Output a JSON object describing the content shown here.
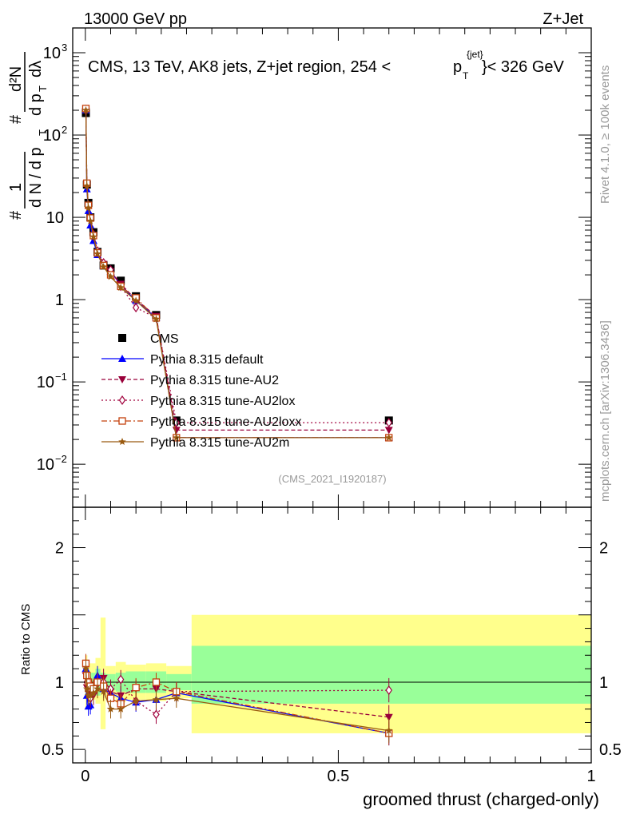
{
  "header": {
    "left": "13000 GeV pp",
    "right": "Z+Jet"
  },
  "title": {
    "main": "CMS, 13 TeV, AK8 jets, Z+jet region, 254 <",
    "p": "p",
    "sub": "T",
    "sup": "{jet}",
    "tail": "}< 326 GeV"
  },
  "side_labels": {
    "rivet": "Rivet 4.1.0, ≥ 100k events",
    "mcplots": "mcplots.cern.ch [arXiv:1306.3436]"
  },
  "analysis_id": "(CMS_2021_I1920187)",
  "ylabel_main": {
    "hash": "#",
    "one": "1",
    "den": "d N / d p",
    "den_sub": "T",
    "num": "d²N",
    "num_den": "d p",
    "num_den_sub": "T",
    "dl": "dλ"
  },
  "ylabel_ratio": "Ratio to CMS",
  "xlabel": "groomed thrust (charged-only)",
  "colors": {
    "cms": "#000000",
    "default": "#0000ff",
    "au2": "#99003a",
    "au2lox": "#a0003c",
    "au2loxx": "#c4400c",
    "au2m": "#9a5a10",
    "band_yellow": "#ffff8c",
    "band_green": "#99ff99"
  },
  "chart_data": [
    {
      "type": "scatter",
      "panel": "main",
      "title": "CMS, 13 TeV, AK8 jets, Z+jet region, 254 <p_T^{jet}< 326 GeV",
      "xlabel": "groomed thrust (charged-only)",
      "ylabel": "1/dN/dpT · d²N/dpT dλ",
      "yscale": "log",
      "xlim": [
        -0.025,
        1.0
      ],
      "ylim": [
        0.003,
        2000
      ],
      "x_ticks": [
        0,
        0.5,
        1
      ],
      "x_tick_labels": [
        "0",
        "0.5",
        "1"
      ],
      "y_ticks": [
        0.01,
        0.1,
        1,
        10,
        100,
        1000
      ],
      "y_tick_labels": [
        "10^-2",
        "10^-1",
        "1",
        "10",
        "10^2",
        "10^3"
      ],
      "x": [
        0.001,
        0.003,
        0.006,
        0.01,
        0.016,
        0.024,
        0.036,
        0.05,
        0.07,
        0.1,
        0.14,
        0.18,
        0.6
      ],
      "series": [
        {
          "name": "CMS",
          "key": "cms",
          "marker": "square",
          "values": [
            185,
            25,
            15,
            10,
            6.6,
            3.8,
            2.6,
            2.4,
            1.7,
            1.1,
            0.65,
            0.034,
            0.034
          ]
        },
        {
          "name": "Pythia 8.315 default",
          "key": "default",
          "marker": "triangle-up",
          "values": [
            200,
            22,
            12,
            8,
            5.2,
            3.5,
            2.6,
            2.2,
            1.5,
            0.97,
            0.6,
            0.021,
            0.021
          ]
        },
        {
          "name": "Pythia 8.315 tune-AU2",
          "key": "au2",
          "marker": "triangle-down",
          "values": [
            195,
            24,
            13.5,
            9.2,
            5.8,
            3.7,
            2.7,
            2.2,
            1.55,
            1.0,
            0.63,
            0.026,
            0.026
          ]
        },
        {
          "name": "Pythia 8.315 tune-AU2lox",
          "key": "au2lox",
          "marker": "diamond-open",
          "values": [
            205,
            25,
            14,
            9.5,
            6.2,
            3.9,
            2.8,
            2.3,
            1.45,
            0.8,
            0.6,
            0.032,
            0.032
          ]
        },
        {
          "name": "Pythia 8.315 tune-AU2loxx",
          "key": "au2loxx",
          "marker": "square-open",
          "values": [
            210,
            26,
            14,
            9.8,
            6.0,
            3.7,
            2.6,
            2.0,
            1.45,
            1.05,
            0.6,
            0.021,
            0.021
          ]
        },
        {
          "name": "Pythia 8.315 tune-AU2m",
          "key": "au2m",
          "marker": "star",
          "values": [
            200,
            24,
            13,
            9.0,
            5.8,
            3.6,
            2.5,
            1.9,
            1.4,
            0.97,
            0.58,
            0.021,
            0.021
          ]
        }
      ],
      "legend": [
        "CMS",
        "Pythia 8.315 default",
        "Pythia 8.315 tune-AU2",
        "Pythia 8.315 tune-AU2lox",
        "Pythia 8.315 tune-AU2loxx",
        "Pythia 8.315 tune-AU2m"
      ],
      "legend_placement": "center-left"
    },
    {
      "type": "line",
      "panel": "ratio",
      "xlabel": "groomed thrust (charged-only)",
      "ylabel": "Ratio to CMS",
      "xlim": [
        -0.025,
        1.0
      ],
      "ylim": [
        0.4,
        2.3
      ],
      "y_ticks": [
        0.5,
        1,
        2
      ],
      "y_tick_labels": [
        "0.5",
        "1",
        "2"
      ],
      "x": [
        0.001,
        0.003,
        0.006,
        0.01,
        0.016,
        0.024,
        0.036,
        0.05,
        0.07,
        0.1,
        0.14,
        0.18,
        0.6
      ],
      "bands": [
        {
          "x_edges": [
            0.0,
            0.002,
            0.004,
            0.008,
            0.012,
            0.02,
            0.03,
            0.04,
            0.06,
            0.08,
            0.12,
            0.16,
            0.21,
            1.0
          ],
          "green": [
            [
              0.88,
              1.12
            ],
            [
              0.92,
              1.08
            ],
            [
              0.93,
              1.07
            ],
            [
              0.93,
              1.07
            ],
            [
              0.93,
              1.07
            ],
            [
              0.9,
              1.1
            ],
            [
              0.93,
              1.07
            ],
            [
              0.94,
              1.06
            ],
            [
              0.93,
              1.07
            ],
            [
              0.92,
              1.08
            ],
            [
              0.92,
              1.08
            ],
            [
              0.94,
              1.06
            ],
            [
              0.84,
              1.27
            ]
          ],
          "yellow": [
            [
              0.8,
              1.2
            ],
            [
              0.85,
              1.2
            ],
            [
              0.86,
              1.15
            ],
            [
              0.86,
              1.14
            ],
            [
              0.87,
              1.14
            ],
            [
              0.84,
              1.18
            ],
            [
              0.65,
              1.48
            ],
            [
              0.88,
              1.12
            ],
            [
              0.85,
              1.15
            ],
            [
              0.87,
              1.13
            ],
            [
              0.86,
              1.14
            ],
            [
              0.88,
              1.12
            ],
            [
              0.62,
              1.5
            ]
          ]
        }
      ],
      "series": [
        {
          "name": "Pythia 8.315 default",
          "key": "default",
          "values": [
            1.1,
            0.9,
            0.82,
            0.83,
            0.95,
            1.05,
            0.95,
            0.92,
            0.88,
            0.85,
            0.87,
            0.92,
            0.62
          ]
        },
        {
          "name": "Pythia 8.315 tune-AU2",
          "key": "au2",
          "values": [
            1.05,
            0.96,
            0.92,
            0.93,
            0.9,
            0.98,
            1.03,
            0.93,
            0.9,
            0.95,
            0.95,
            0.93,
            0.74
          ]
        },
        {
          "name": "Pythia 8.315 tune-AU2lox",
          "key": "au2lox",
          "values": [
            1.13,
            1.0,
            0.95,
            0.88,
            0.92,
            1.0,
            1.0,
            0.95,
            1.02,
            0.86,
            0.76,
            0.93,
            0.94
          ]
        },
        {
          "name": "Pythia 8.315 tune-AU2loxx",
          "key": "au2loxx",
          "values": [
            1.14,
            1.05,
            1.0,
            0.97,
            0.95,
            1.0,
            0.97,
            0.88,
            0.84,
            0.96,
            1.0,
            0.93,
            0.62
          ]
        },
        {
          "name": "Pythia 8.315 tune-AU2m",
          "key": "au2m",
          "values": [
            1.1,
            0.95,
            0.9,
            0.9,
            0.92,
            0.95,
            0.93,
            0.8,
            0.8,
            0.86,
            0.87,
            0.88,
            0.64
          ]
        }
      ]
    }
  ]
}
